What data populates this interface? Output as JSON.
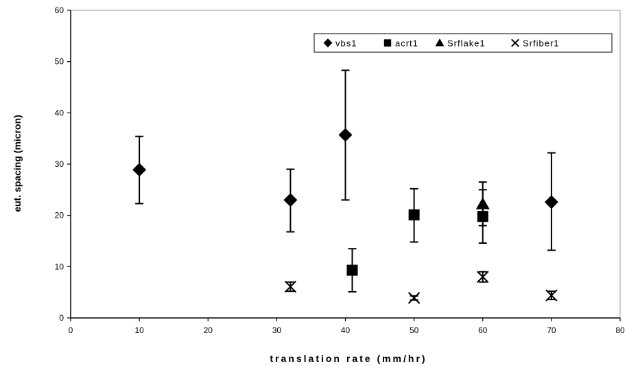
{
  "chart_data": {
    "type": "scatter",
    "title": "",
    "xlabel": "translation rate (mm/hr)",
    "ylabel": "eut. spacing (micron)",
    "xlim": [
      0,
      80
    ],
    "ylim": [
      0,
      60
    ],
    "xticks": [
      0,
      10,
      20,
      30,
      40,
      50,
      60,
      70,
      80
    ],
    "yticks": [
      0,
      10,
      20,
      30,
      40,
      50,
      60
    ],
    "grid": false,
    "legend_position": "top-right",
    "error_bars": true,
    "series": [
      {
        "name": "vbs1",
        "marker": "diamond",
        "color": "#000000",
        "points": [
          {
            "x": 10,
            "y": 28.9,
            "err_low": 22.3,
            "err_high": 35.4
          },
          {
            "x": 32,
            "y": 23.0,
            "err_low": 16.8,
            "err_high": 29.0
          },
          {
            "x": 40,
            "y": 35.7,
            "err_low": 23.0,
            "err_high": 48.3
          },
          {
            "x": 70,
            "y": 22.6,
            "err_low": 13.2,
            "err_high": 32.2
          }
        ]
      },
      {
        "name": "acrt1",
        "marker": "square",
        "color": "#000000",
        "points": [
          {
            "x": 41,
            "y": 9.3,
            "err_low": 5.1,
            "err_high": 13.5
          },
          {
            "x": 50,
            "y": 20.1,
            "err_low": 14.8,
            "err_high": 25.2
          },
          {
            "x": 60,
            "y": 19.8,
            "err_low": 14.6,
            "err_high": 25.0
          }
        ]
      },
      {
        "name": "Srflake1",
        "marker": "triangle",
        "color": "#000000",
        "points": [
          {
            "x": 60,
            "y": 22.2,
            "err_low": 18.0,
            "err_high": 26.5
          }
        ]
      },
      {
        "name": "Srfiber1",
        "marker": "x",
        "color": "#000000",
        "points": [
          {
            "x": 32,
            "y": 6.1,
            "err_low": 5.2,
            "err_high": 7.0
          },
          {
            "x": 50,
            "y": 3.9,
            "err_low": 3.5,
            "err_high": 4.3
          },
          {
            "x": 60,
            "y": 8.0,
            "err_low": 7.0,
            "err_high": 9.0
          },
          {
            "x": 70,
            "y": 4.4,
            "err_low": 3.6,
            "err_high": 5.2
          }
        ]
      }
    ]
  }
}
